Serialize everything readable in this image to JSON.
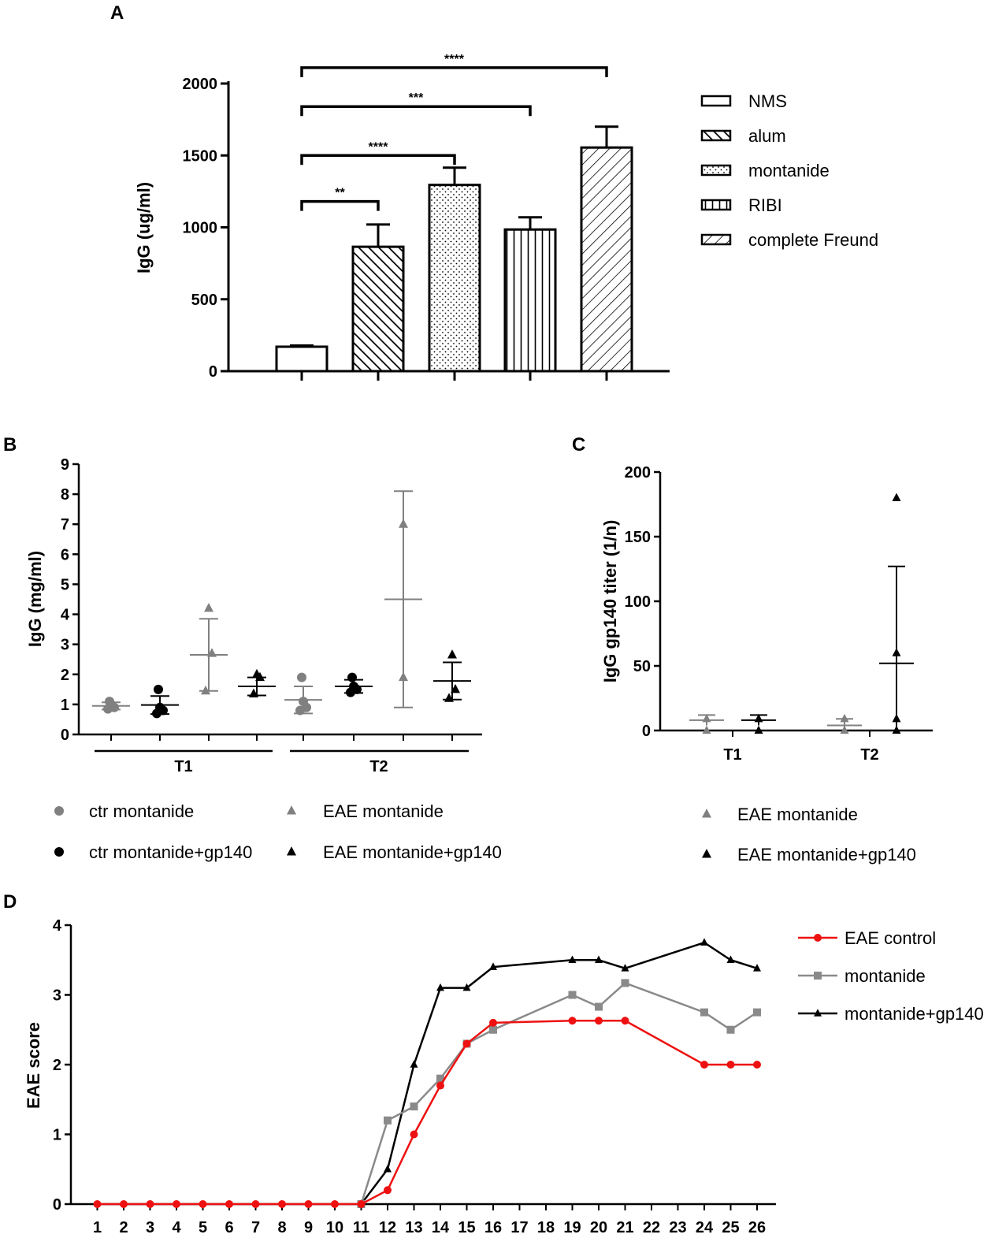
{
  "panels": {
    "a": "A",
    "b": "B",
    "c": "C",
    "d": "D"
  },
  "chart_data": [
    {
      "id": "A",
      "type": "bar",
      "categories": [
        "NMS",
        "alum",
        "montanide",
        "RIBI",
        "complete Freund"
      ],
      "values": [
        170,
        865,
        1295,
        985,
        1555
      ],
      "errors": [
        8,
        155,
        120,
        85,
        145
      ],
      "ylabel": "IgG (ug/ml)",
      "ylim": [
        0,
        2000
      ],
      "yticks": [
        0,
        500,
        1000,
        1500,
        2000
      ],
      "legend": [
        "NMS",
        "alum",
        "montanide",
        "RIBI",
        "complete Freund"
      ],
      "legend_position": "right",
      "significance": [
        {
          "from": 0,
          "to": 1,
          "label": "**",
          "y": 1180
        },
        {
          "from": 0,
          "to": 2,
          "label": "****",
          "y": 1500
        },
        {
          "from": 0,
          "to": 3,
          "label": "***",
          "y": 1840
        },
        {
          "from": 0,
          "to": 4,
          "label": "****",
          "y": 2110
        }
      ]
    },
    {
      "id": "B",
      "type": "scatter",
      "ylabel": "IgG (mg/ml)",
      "ylim": [
        0,
        9
      ],
      "yticks": [
        0,
        1,
        2,
        3,
        4,
        5,
        6,
        7,
        8,
        9
      ],
      "group_labels": [
        "T1",
        "T2"
      ],
      "legend": [
        "ctr montanide",
        "EAE montanide",
        "ctr montanide+gp140",
        "EAE montanide+gp140"
      ],
      "legend_position": "bottom",
      "series": [
        {
          "name": "ctr montanide",
          "marker": "circle",
          "color": "#808080",
          "groups": [
            {
              "points": [
                0.85,
                0.9,
                1.0,
                1.1
              ],
              "mean": 0.95,
              "sd": 0.12
            },
            {
              "points": [
                0.8,
                0.9,
                1.1,
                1.9
              ],
              "mean": 1.15,
              "sd": 0.45
            }
          ]
        },
        {
          "name": "ctr montanide+gp140",
          "marker": "circle",
          "color": "#000000",
          "groups": [
            {
              "points": [
                0.7,
                0.8,
                0.9,
                1.5
              ],
              "mean": 0.98,
              "sd": 0.3
            },
            {
              "points": [
                1.4,
                1.5,
                1.6,
                1.9
              ],
              "mean": 1.6,
              "sd": 0.22
            }
          ]
        },
        {
          "name": "EAE montanide",
          "marker": "triangle",
          "color": "#808080",
          "groups": [
            {
              "points": [
                1.45,
                2.7,
                4.2
              ],
              "mean": 2.65,
              "sd": 1.2
            },
            {
              "points": [
                1.9,
                7.0
              ],
              "mean": 4.5,
              "sd": 3.6
            }
          ]
        },
        {
          "name": "EAE montanide+gp140",
          "marker": "triangle",
          "color": "#000000",
          "groups": [
            {
              "points": [
                1.35,
                1.9,
                2.0
              ],
              "mean": 1.6,
              "sd": 0.3
            },
            {
              "points": [
                1.2,
                1.5,
                2.65
              ],
              "mean": 1.78,
              "sd": 0.62
            }
          ]
        }
      ]
    },
    {
      "id": "C",
      "type": "scatter",
      "ylabel": "IgG gp140 titer (1/n)",
      "ylim": [
        0,
        200
      ],
      "yticks": [
        0,
        50,
        100,
        150,
        200
      ],
      "group_labels": [
        "T1",
        "T2"
      ],
      "legend": [
        "EAE montanide",
        "EAE montanide+gp140"
      ],
      "legend_position": "bottom",
      "series": [
        {
          "name": "EAE montanide",
          "marker": "triangle",
          "color": "#808080",
          "groups": [
            {
              "points": [
                0,
                9
              ],
              "mean": 8,
              "sd": 4
            },
            {
              "points": [
                0,
                9
              ],
              "mean": 4,
              "sd": 5
            }
          ]
        },
        {
          "name": "EAE montanide+gp140",
          "marker": "triangle",
          "color": "#000000",
          "groups": [
            {
              "points": [
                0,
                9
              ],
              "mean": 8,
              "sd": 4
            },
            {
              "points": [
                0,
                9,
                60,
                180
              ],
              "mean": 52,
              "sd": 75
            }
          ]
        }
      ]
    },
    {
      "id": "D",
      "type": "line",
      "x": [
        "1",
        "2",
        "3",
        "4",
        "5",
        "6",
        "7",
        "8",
        "9",
        "10",
        "11",
        "12",
        "13",
        "14",
        "15",
        "16",
        "17",
        "18",
        "19",
        "20",
        "21",
        "22",
        "23",
        "24",
        "25",
        "26"
      ],
      "ylabel": "EAE score",
      "ylim": [
        0,
        4
      ],
      "yticks": [
        0,
        1,
        2,
        3,
        4
      ],
      "legend_position": "top-right",
      "series": [
        {
          "name": "EAE control",
          "marker": "circle",
          "color": "#ee1111",
          "points": [
            [
              1,
              0
            ],
            [
              2,
              0
            ],
            [
              3,
              0
            ],
            [
              4,
              0
            ],
            [
              5,
              0
            ],
            [
              6,
              0
            ],
            [
              7,
              0
            ],
            [
              8,
              0
            ],
            [
              9,
              0
            ],
            [
              10,
              0
            ],
            [
              11,
              0
            ],
            [
              12,
              0.2
            ],
            [
              13,
              1.0
            ],
            [
              14,
              1.7
            ],
            [
              15,
              2.3
            ],
            [
              16,
              2.6
            ],
            [
              19,
              2.63
            ],
            [
              20,
              2.63
            ],
            [
              21,
              2.63
            ],
            [
              24,
              2.0
            ],
            [
              25,
              2.0
            ],
            [
              26,
              2.0
            ]
          ]
        },
        {
          "name": "montanide",
          "marker": "square",
          "color": "#8a8a8a",
          "points": [
            [
              11,
              0
            ],
            [
              12,
              1.2
            ],
            [
              13,
              1.4
            ],
            [
              14,
              1.8
            ],
            [
              15,
              2.3
            ],
            [
              16,
              2.5
            ],
            [
              19,
              3.0
            ],
            [
              20,
              2.83
            ],
            [
              21,
              3.17
            ],
            [
              24,
              2.75
            ],
            [
              25,
              2.5
            ],
            [
              26,
              2.75
            ]
          ]
        },
        {
          "name": "montanide+gp140",
          "marker": "triangle",
          "color": "#000000",
          "points": [
            [
              11,
              0
            ],
            [
              12,
              0.5
            ],
            [
              13,
              2.0
            ],
            [
              14,
              3.1
            ],
            [
              15,
              3.1
            ],
            [
              16,
              3.4
            ],
            [
              19,
              3.5
            ],
            [
              20,
              3.5
            ],
            [
              21,
              3.38
            ],
            [
              24,
              3.75
            ],
            [
              25,
              3.5
            ],
            [
              26,
              3.38
            ]
          ]
        }
      ]
    }
  ]
}
